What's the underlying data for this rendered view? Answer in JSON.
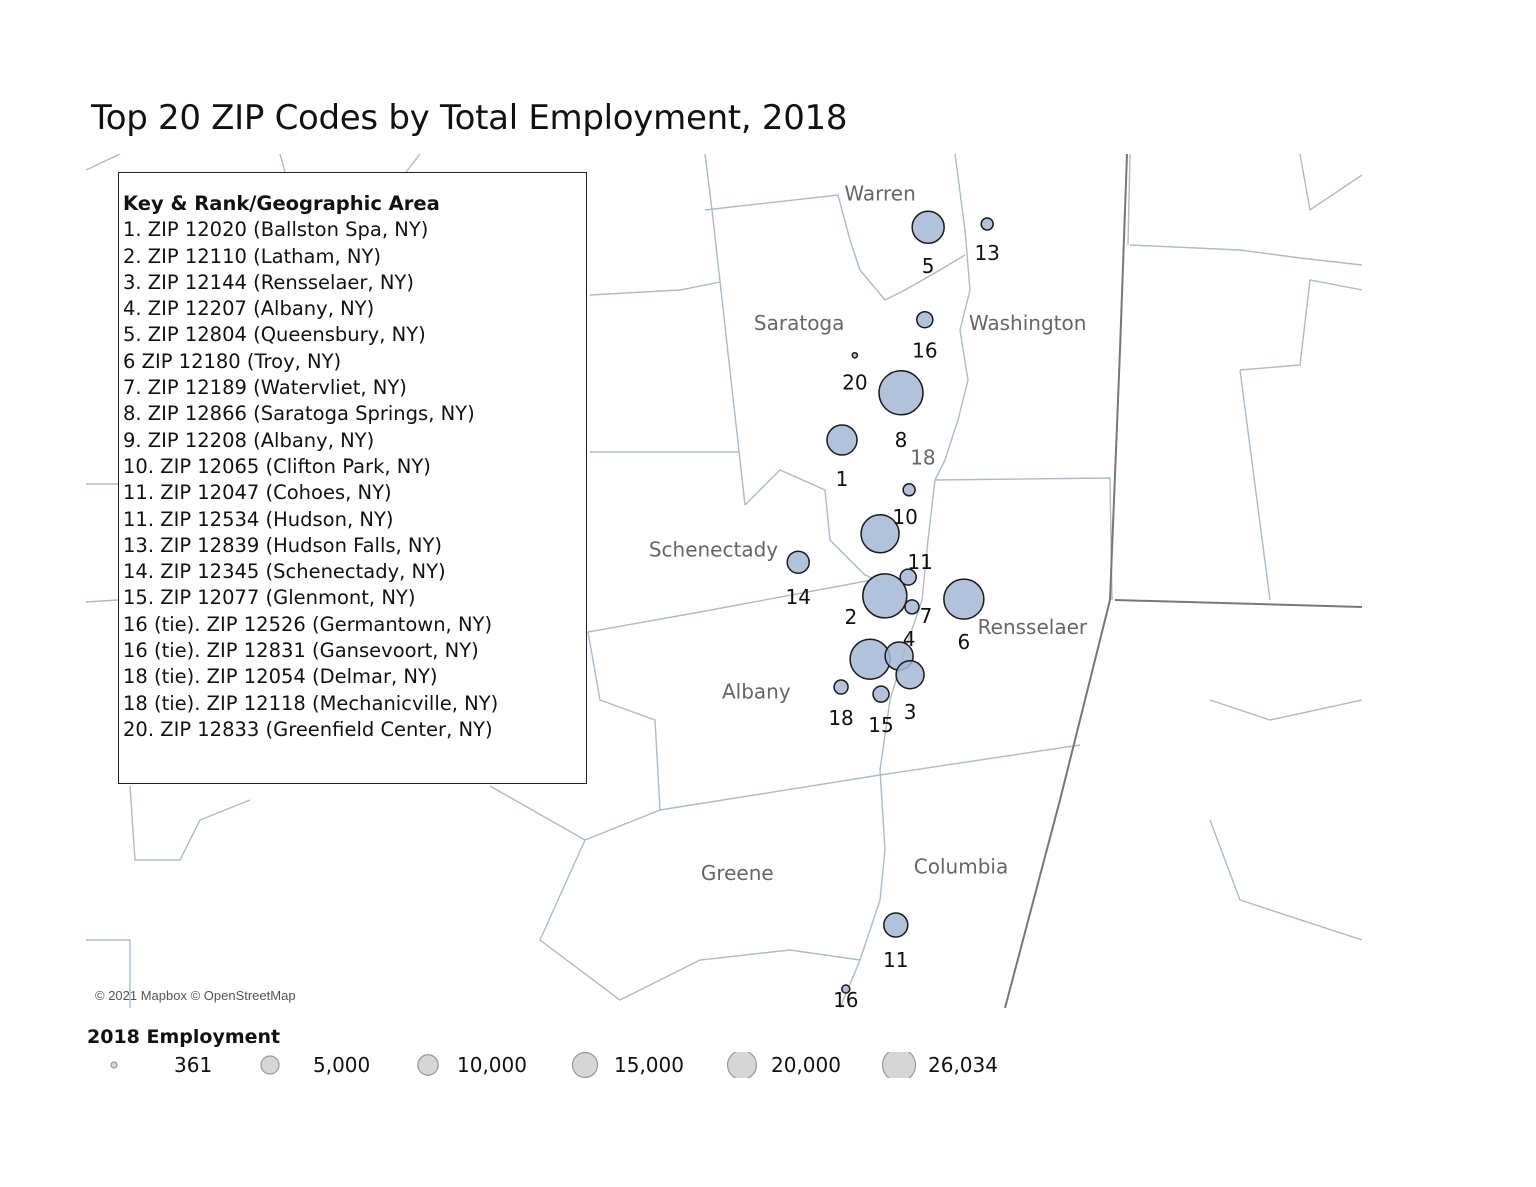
{
  "title": "Top 20 ZIP Codes by Total Employment, 2018",
  "key": {
    "heading": "Key & Rank/Geographic Area",
    "items": [
      "1. ZIP 12020 (Ballston Spa, NY)",
      "2. ZIP 12110 (Latham, NY)",
      "3. ZIP 12144 (Rensselaer, NY)",
      "4. ZIP 12207 (Albany, NY)",
      "5. ZIP 12804 (Queensbury, NY)",
      "6 ZIP 12180 (Troy, NY)",
      "7. ZIP 12189 (Watervliet, NY)",
      "8. ZIP 12866 (Saratoga Springs, NY)",
      "9. ZIP 12208 (Albany, NY)",
      "10. ZIP 12065 (Clifton Park, NY)",
      "11. ZIP 12047 (Cohoes, NY)",
      "11. ZIP 12534 (Hudson, NY)",
      "13. ZIP 12839 (Hudson Falls, NY)",
      "14. ZIP 12345 (Schenectady, NY)",
      "15. ZIP 12077 (Glenmont, NY)",
      "16 (tie). ZIP 12526 (Germantown, NY)",
      "16 (tie). ZIP 12831 (Gansevoort, NY)",
      "18 (tie). ZIP 12054 (Delmar, NY)",
      "18 (tie). ZIP 12118 (Mechanicville, NY)",
      "20. ZIP 12833 (Greenfield Center, NY)"
    ]
  },
  "counties": [
    {
      "name": "Warren",
      "lon": -73.77,
      "lat": 43.37
    },
    {
      "name": "Saratoga",
      "lon": -73.94,
      "lat": 43.17
    },
    {
      "name": "Washington",
      "lon": -73.46,
      "lat": 43.17
    },
    {
      "name": "Schenectady",
      "lon": -74.12,
      "lat": 42.82
    },
    {
      "name": "Rensselaer",
      "lon": -73.45,
      "lat": 42.7
    },
    {
      "name": "Albany",
      "lon": -74.03,
      "lat": 42.6
    },
    {
      "name": "Greene",
      "lon": -74.07,
      "lat": 42.32
    },
    {
      "name": "Columbia",
      "lon": -73.6,
      "lat": 42.33
    }
  ],
  "markers": [
    {
      "label": "5",
      "lon": -73.669,
      "lat": 43.329,
      "employment": 13770
    },
    {
      "label": "13",
      "lon": -73.545,
      "lat": 43.334,
      "employment": 1936
    },
    {
      "label": "16",
      "lon": -73.676,
      "lat": 43.186,
      "employment": 3442
    },
    {
      "label": "20",
      "lon": -73.823,
      "lat": 43.131,
      "employment": 361
    },
    {
      "label": "8",
      "lon": -73.726,
      "lat": 43.073,
      "employment": 26034
    },
    {
      "label": "1",
      "lon": -73.85,
      "lat": 43.0,
      "employment": 12103
    },
    {
      "label": "10",
      "lon": -73.709,
      "lat": 42.923,
      "employment": 1936
    },
    {
      "label": "",
      "lon": -73.77,
      "lat": 42.855,
      "employment": 19419
    },
    {
      "label": "14",
      "lon": -73.942,
      "lat": 42.811,
      "employment": 6509
    },
    {
      "label": "11",
      "lon": -73.711,
      "lat": 42.788,
      "employment": 3442
    },
    {
      "label": "2",
      "lon": -73.76,
      "lat": 42.759,
      "employment": 26034
    },
    {
      "label": "7",
      "lon": -73.703,
      "lat": 42.742,
      "employment": 2636
    },
    {
      "label": "6",
      "lon": -73.594,
      "lat": 42.754,
      "employment": 21516
    },
    {
      "label": "",
      "lon": -73.791,
      "lat": 42.661,
      "employment": 21516
    },
    {
      "label": "4",
      "lon": -73.73,
      "lat": 42.666,
      "employment": 10543
    },
    {
      "label": "3",
      "lon": -73.707,
      "lat": 42.637,
      "employment": 10543
    },
    {
      "label": "18",
      "lon": -73.852,
      "lat": 42.618,
      "employment": 2636
    },
    {
      "label": "15",
      "lon": -73.768,
      "lat": 42.607,
      "employment": 3442
    },
    {
      "label": "11",
      "lon": -73.737,
      "lat": 42.25,
      "employment": 7746
    },
    {
      "label": "16",
      "lon": -73.842,
      "lat": 42.151,
      "employment": 861
    }
  ],
  "floating_label": {
    "text": "18",
    "lon": -73.68,
    "lat": 42.962
  },
  "credit": "© 2021 Mapbox © OpenStreetMap",
  "size_legend": {
    "title": "2018 Employment",
    "values": [
      361,
      5000,
      10000,
      15000,
      20000,
      26034
    ],
    "labels": [
      "361",
      "5,000",
      "10,000",
      "15,000",
      "20,000",
      "26,034"
    ]
  },
  "colors": {
    "marker_fill": "#a3b8d4",
    "marker_stroke": "#1a1a1a",
    "boundary": "#a9bccc",
    "state_line": "#777777",
    "county_label": "#666666",
    "legend_fill": "#d6d6d6"
  }
}
